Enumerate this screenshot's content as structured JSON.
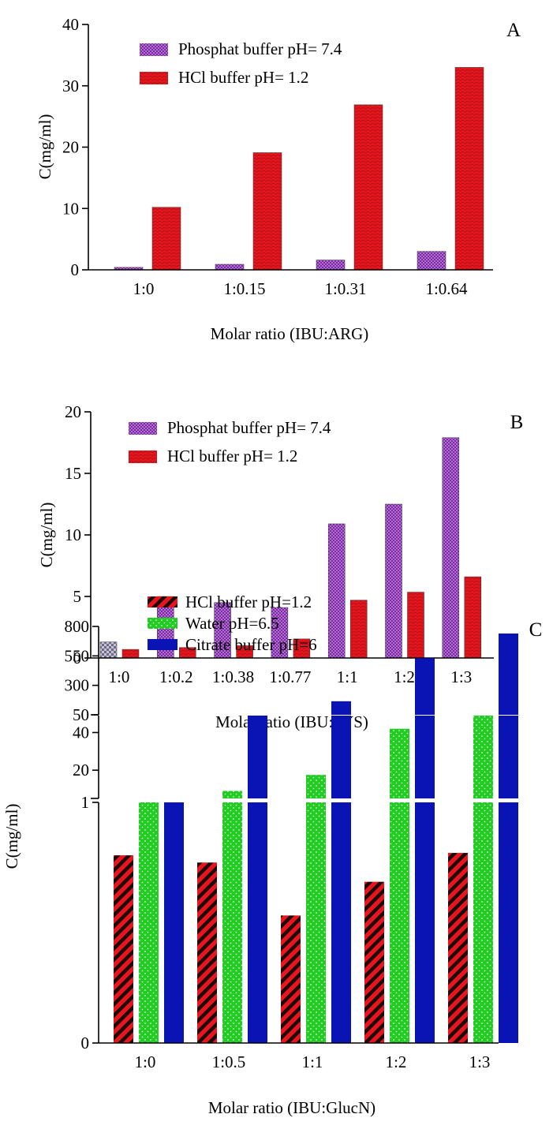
{
  "chart_data": [
    {
      "type": "bar",
      "panel_label": "A",
      "categories": [
        "1:0",
        "1:0.15",
        "1:0.31",
        "1:0.64"
      ],
      "series": [
        {
          "name": "Phosphat buffer pH= 7.4",
          "values": [
            0.4,
            0.9,
            1.6,
            3.0
          ],
          "color": "#7b2fa2"
        },
        {
          "name": "HCl buffer pH= 1.2",
          "values": [
            10.2,
            19.1,
            26.9,
            33.0
          ],
          "color": "#e8141e"
        }
      ],
      "xlabel": "Molar ratio (IBU:ARG)",
      "ylabel": "C(mg/ml)",
      "ylim": [
        0,
        40
      ],
      "yticks": [
        "0",
        "10",
        "20",
        "30",
        "40"
      ],
      "legend": "top-left"
    },
    {
      "type": "bar",
      "panel_label": "B",
      "categories": [
        "1:0",
        "1:0.2",
        "1:0.38",
        "1:0.77",
        "1:1",
        "1:2",
        "1:3"
      ],
      "series": [
        {
          "name": "Phosphat buffer pH= 7.4",
          "values": [
            1.3,
            5.0,
            4.5,
            4.1,
            10.9,
            12.5,
            17.9
          ],
          "color": "#7b2fa2"
        },
        {
          "name": "HCl buffer pH= 1.2",
          "values": [
            0.7,
            0.85,
            1.0,
            1.55,
            4.7,
            5.35,
            6.6
          ],
          "color": "#e8141e"
        }
      ],
      "xlabel": "Molar ratio (IBU:LYS)",
      "ylabel": "C(mg/ml)",
      "ylim": [
        0,
        20
      ],
      "yticks": [
        "0",
        "5",
        "10",
        "15",
        "20"
      ],
      "legend": "top-left"
    },
    {
      "type": "bar",
      "panel_label": "C",
      "broken_axis": true,
      "categories": [
        "1:0",
        "1:0.5",
        "1:1",
        "1:2",
        "1:3"
      ],
      "series": [
        {
          "name": "HCl buffer pH=1.2",
          "values": [
            0.78,
            0.75,
            0.53,
            0.67,
            0.79
          ],
          "color": "#e8141e"
        },
        {
          "name": "Water pH=6.5",
          "values": [
            1.0,
            9.0,
            17.5,
            42.0,
            49.0
          ],
          "color": "#1fd21f"
        },
        {
          "name": "Citrate buffer pH=6",
          "values": [
            3.0,
            49.0,
            165.0,
            530.0,
            740.0
          ],
          "color": "#0a14b4"
        }
      ],
      "segments": [
        {
          "ylim": [
            0,
            1
          ],
          "yticks": [
            "0",
            "1"
          ]
        },
        {
          "ylim": [
            5,
            49
          ],
          "yticks": [
            "20",
            "40"
          ]
        },
        {
          "ylim": [
            50,
            800
          ],
          "yticks": [
            "50",
            "300",
            "550",
            "800"
          ]
        }
      ],
      "xlabel": "Molar ratio (IBU:GlucN)",
      "ylabel": "C(mg/ml)",
      "legend": "top-left"
    }
  ]
}
